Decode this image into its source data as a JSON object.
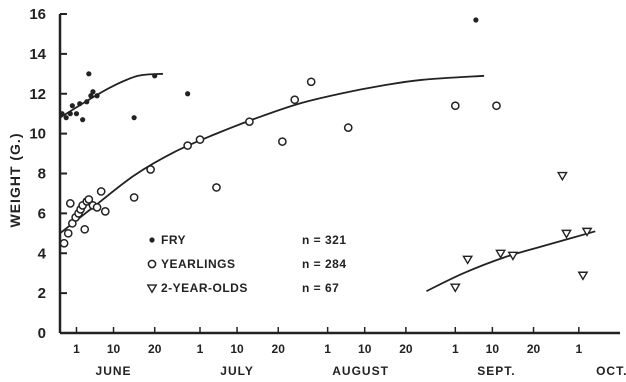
{
  "chart_data": {
    "type": "scatter",
    "title": "",
    "ylabel": "WEIGHT (G.)",
    "xlabel": "",
    "ylim": [
      0,
      16
    ],
    "yticks": [
      0,
      2,
      4,
      6,
      8,
      10,
      12,
      14,
      16
    ],
    "x_axis_day_ticks": [
      {
        "day": 1,
        "label": "1"
      },
      {
        "day": 10,
        "label": "10"
      },
      {
        "day": 20,
        "label": "20"
      },
      {
        "day": 31,
        "label": "1"
      },
      {
        "day": 40,
        "label": "10"
      },
      {
        "day": 50,
        "label": "20"
      },
      {
        "day": 62,
        "label": "1"
      },
      {
        "day": 71,
        "label": "10"
      },
      {
        "day": 81,
        "label": "20"
      },
      {
        "day": 93,
        "label": "1"
      },
      {
        "day": 102,
        "label": "10"
      },
      {
        "day": 112,
        "label": "20"
      },
      {
        "day": 123,
        "label": "1"
      }
    ],
    "x_axis_note": "x values are calendar days counted from June 1 = 1 (July 1 = 31, August 1 = 62, September 1 = 93, October 1 = 123)",
    "months": [
      {
        "label": "JUNE",
        "day": 10
      },
      {
        "label": "JULY",
        "day": 40
      },
      {
        "label": "AUGUST",
        "day": 70
      },
      {
        "label": "SEPT.",
        "day": 103
      },
      {
        "label": "OCT.",
        "day": 131
      }
    ],
    "xlim": [
      -3,
      133
    ],
    "legend_position": "lower-left",
    "series": [
      {
        "name": "FRY",
        "n_label": "n = 321",
        "marker": "dot",
        "points": [
          [
            -2.5,
            11.0
          ],
          [
            -1.5,
            10.8
          ],
          [
            -0.5,
            11.0
          ],
          [
            0,
            11.4
          ],
          [
            1,
            11.0
          ],
          [
            1.8,
            11.5
          ],
          [
            2.5,
            10.7
          ],
          [
            3.5,
            11.6
          ],
          [
            4,
            13.0
          ],
          [
            4.5,
            11.9
          ],
          [
            5,
            12.1
          ],
          [
            6,
            11.9
          ],
          [
            15,
            10.8
          ],
          [
            20,
            12.9
          ],
          [
            28,
            12.0
          ],
          [
            98,
            15.7
          ]
        ],
        "fit": [
          [
            -3,
            10.8
          ],
          [
            4,
            11.7
          ],
          [
            10,
            12.4
          ],
          [
            16,
            12.9
          ],
          [
            22,
            13.0
          ]
        ]
      },
      {
        "name": "YEARLINGS",
        "n_label": "n = 284",
        "marker": "circle",
        "points": [
          [
            -2,
            4.5
          ],
          [
            -1,
            5.0
          ],
          [
            -0.5,
            6.5
          ],
          [
            0,
            5.5
          ],
          [
            0.8,
            5.8
          ],
          [
            1.5,
            6.0
          ],
          [
            2,
            6.2
          ],
          [
            2.5,
            6.4
          ],
          [
            3,
            5.2
          ],
          [
            3.5,
            6.6
          ],
          [
            4,
            6.7
          ],
          [
            5,
            6.4
          ],
          [
            6,
            6.3
          ],
          [
            7,
            7.1
          ],
          [
            8,
            6.1
          ],
          [
            15,
            6.8
          ],
          [
            19,
            8.2
          ],
          [
            28,
            9.4
          ],
          [
            31,
            9.7
          ],
          [
            35,
            7.3
          ],
          [
            43,
            10.6
          ],
          [
            51,
            9.6
          ],
          [
            54,
            11.7
          ],
          [
            58,
            12.6
          ],
          [
            67,
            10.3
          ],
          [
            93,
            11.4
          ],
          [
            103,
            11.4
          ]
        ],
        "fit": [
          [
            -3,
            5.0
          ],
          [
            5,
            6.3
          ],
          [
            15,
            7.9
          ],
          [
            25,
            9.1
          ],
          [
            35,
            10.0
          ],
          [
            45,
            10.8
          ],
          [
            55,
            11.5
          ],
          [
            65,
            12.0
          ],
          [
            75,
            12.4
          ],
          [
            85,
            12.7
          ],
          [
            100,
            12.9
          ]
        ]
      },
      {
        "name": "2-YEAR-OLDS",
        "n_label": "n = 67",
        "marker": "triangle",
        "points": [
          [
            93,
            2.3
          ],
          [
            96,
            3.7
          ],
          [
            104,
            4.0
          ],
          [
            107,
            3.9
          ],
          [
            119,
            7.9
          ],
          [
            120,
            5.0
          ],
          [
            124,
            2.9
          ],
          [
            125,
            5.1
          ]
        ],
        "fit": [
          [
            86,
            2.1
          ],
          [
            95,
            3.0
          ],
          [
            105,
            3.8
          ],
          [
            115,
            4.4
          ],
          [
            127,
            5.1
          ]
        ]
      }
    ]
  }
}
